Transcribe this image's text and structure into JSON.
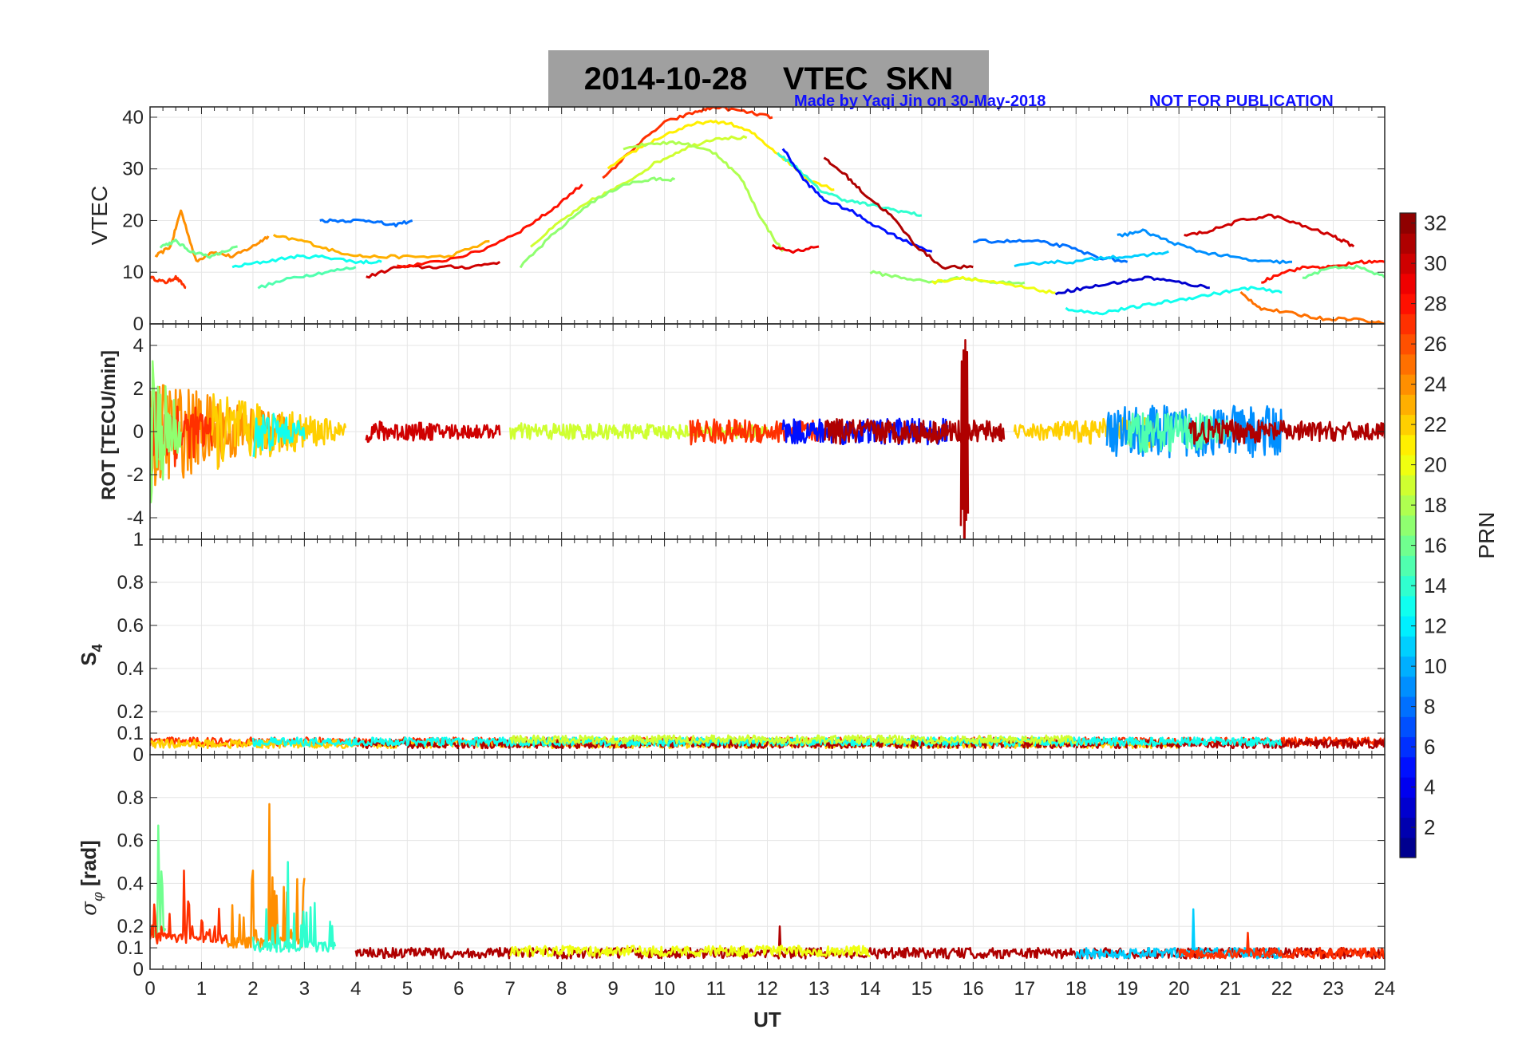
{
  "header": {
    "title": "2014-10-28    VTEC  SKN",
    "credit_left": "Made by Yaqi Jin on 30-May-2018",
    "credit_right": "NOT FOR PUBLICATION"
  },
  "colors": {
    "title_box": "#a0a0a0",
    "credit_text": "#1010ff",
    "grid": "#e6e6e6",
    "axis": "#262626"
  },
  "chart_data": [
    {
      "type": "line",
      "panel": "VTEC",
      "ylabel": "VTEC",
      "xlim": [
        0,
        24
      ],
      "ylim": [
        0,
        42
      ],
      "yticks": [
        0,
        10,
        20,
        30,
        40
      ],
      "ytick_labels": [
        "0",
        "10",
        "20",
        "30",
        "40"
      ],
      "grid": true,
      "series": [
        {
          "prn": 27,
          "x": [
            0,
            0.3,
            0.5,
            0.7
          ],
          "y": [
            9,
            8,
            9,
            7
          ]
        },
        {
          "prn": 24,
          "x": [
            0.1,
            0.4,
            0.6,
            0.9,
            1.2,
            1.6,
            2.0,
            2.3
          ],
          "y": [
            13,
            15,
            22,
            12,
            14,
            13,
            15,
            17
          ]
        },
        {
          "prn": 16,
          "x": [
            0.2,
            0.5,
            0.8,
            1.2,
            1.7
          ],
          "y": [
            15,
            16,
            14,
            13,
            15
          ]
        },
        {
          "prn": 23,
          "x": [
            2.4,
            3.0,
            3.6,
            4.2,
            5.0,
            5.8,
            6.6
          ],
          "y": [
            17,
            16,
            14,
            13,
            13,
            13,
            16
          ]
        },
        {
          "prn": 13,
          "x": [
            1.6,
            2.2,
            2.8,
            3.4,
            4.0,
            4.5
          ],
          "y": [
            11,
            12,
            13,
            13,
            12,
            12
          ]
        },
        {
          "prn": 15,
          "x": [
            2.1,
            2.8,
            3.4,
            4.0
          ],
          "y": [
            7,
            9,
            10,
            11
          ]
        },
        {
          "prn": 8,
          "x": [
            3.3,
            3.8,
            4.3,
            4.7,
            5.1
          ],
          "y": [
            20,
            20,
            20,
            19,
            20
          ]
        },
        {
          "prn": 30,
          "x": [
            4.2,
            4.8,
            5.5,
            6.2,
            6.8
          ],
          "y": [
            9,
            11,
            11,
            11,
            12
          ]
        },
        {
          "prn": 28,
          "x": [
            4.8,
            5.6,
            6.4,
            7.2,
            7.8,
            8.4
          ],
          "y": [
            11,
            12,
            14,
            18,
            22,
            27
          ]
        },
        {
          "prn": 19,
          "x": [
            7.4,
            8.0,
            8.6,
            9.2,
            9.8,
            10.4,
            11.0,
            11.6
          ],
          "y": [
            15,
            20,
            24,
            27,
            31,
            34,
            36,
            36
          ]
        },
        {
          "prn": 17,
          "x": [
            7.2,
            7.8,
            8.5,
            9.2,
            9.8,
            10.2
          ],
          "y": [
            11,
            17,
            23,
            27,
            28,
            28
          ]
        },
        {
          "prn": 27,
          "x": [
            8.8,
            9.4,
            10.0,
            10.6,
            11.0,
            11.6,
            12.1
          ],
          "y": [
            28,
            34,
            39,
            41,
            42,
            41,
            40
          ]
        },
        {
          "prn": 21,
          "x": [
            8.9,
            9.5,
            10.1,
            10.7,
            11.2,
            11.7,
            12.2,
            12.8,
            13.3
          ],
          "y": [
            30,
            34,
            37,
            39,
            39,
            37,
            33,
            28,
            26
          ]
        },
        {
          "prn": 18,
          "x": [
            9.2,
            9.8,
            10.4,
            11.0,
            11.5,
            11.9,
            12.3
          ],
          "y": [
            34,
            35,
            35,
            33,
            28,
            20,
            14
          ]
        },
        {
          "prn": 14,
          "x": [
            12.2,
            12.6,
            13.0,
            13.5,
            14.0,
            14.5,
            15.0
          ],
          "y": [
            33,
            30,
            26,
            24,
            23,
            22,
            21
          ]
        },
        {
          "prn": 5,
          "x": [
            12.3,
            12.7,
            13.1,
            13.6,
            14.1,
            14.7,
            15.2
          ],
          "y": [
            34,
            28,
            24,
            22,
            19,
            16,
            14
          ]
        },
        {
          "prn": 31,
          "x": [
            13.1,
            13.5,
            13.9,
            14.4,
            14.9,
            15.4,
            16.0
          ],
          "y": [
            32,
            29,
            25,
            21,
            15,
            11,
            11
          ]
        },
        {
          "prn": 29,
          "x": [
            12.1,
            12.5,
            13.0
          ],
          "y": [
            15,
            14,
            15
          ]
        },
        {
          "prn": 17,
          "x": [
            14.0,
            14.6,
            15.2,
            15.8,
            16.4,
            17.0
          ],
          "y": [
            10,
            9,
            8,
            9,
            8,
            8
          ]
        },
        {
          "prn": 20,
          "x": [
            15.2,
            15.8,
            16.4,
            17.0,
            17.6
          ],
          "y": [
            8,
            9,
            8,
            7,
            6
          ]
        },
        {
          "prn": 8,
          "x": [
            16.0,
            16.6,
            17.2,
            17.8,
            18.4,
            19.0
          ],
          "y": [
            16,
            16,
            16,
            15,
            13,
            12
          ]
        },
        {
          "prn": 11,
          "x": [
            16.8,
            17.4,
            18.0,
            18.6,
            19.2,
            19.8
          ],
          "y": [
            11,
            12,
            12,
            13,
            13,
            14
          ]
        },
        {
          "prn": 9,
          "x": [
            18.8,
            19.3,
            19.8,
            20.4,
            21.0,
            21.6,
            22.2
          ],
          "y": [
            17,
            18,
            16,
            14,
            13,
            12,
            12
          ]
        },
        {
          "prn": 30,
          "x": [
            20.1,
            20.6,
            21.2,
            21.8,
            22.4,
            23.0,
            23.4
          ],
          "y": [
            17,
            18,
            20,
            21,
            19,
            17,
            15
          ]
        },
        {
          "prn": 28,
          "x": [
            21.6,
            22.0,
            22.5,
            23.0,
            23.5,
            24.0
          ],
          "y": [
            8,
            10,
            11,
            11,
            12,
            12
          ]
        },
        {
          "prn": 25,
          "x": [
            21.2,
            21.6,
            22.2,
            22.8,
            23.4,
            24.0
          ],
          "y": [
            6,
            3,
            2,
            1,
            1,
            0
          ]
        },
        {
          "prn": 3,
          "x": [
            17.6,
            18.2,
            18.8,
            19.4,
            20.0,
            20.6
          ],
          "y": [
            6,
            7,
            8,
            9,
            8,
            7
          ]
        },
        {
          "prn": 13,
          "x": [
            17.8,
            18.4,
            19.0,
            19.6,
            20.2,
            20.8,
            21.4,
            22.0
          ],
          "y": [
            3,
            2,
            3,
            4,
            5,
            6,
            7,
            6
          ]
        },
        {
          "prn": 16,
          "x": [
            22.4,
            23.0,
            23.5,
            24.0
          ],
          "y": [
            9,
            11,
            11,
            9
          ]
        }
      ]
    },
    {
      "type": "line",
      "panel": "ROT",
      "ylabel": "ROT [TECU/min]",
      "xlim": [
        0,
        24
      ],
      "ylim": [
        -5,
        5
      ],
      "yticks": [
        -4,
        -2,
        0,
        2,
        4
      ],
      "ytick_labels": [
        "-4",
        "-2",
        "0",
        "2",
        "4"
      ],
      "grid": true,
      "series": [
        {
          "prn": 24,
          "x": [
            0,
            2.8
          ],
          "amplitude": [
            2.6,
            0.6
          ]
        },
        {
          "prn": 27,
          "x": [
            0,
            1.2
          ],
          "amplitude": [
            2.2,
            0.8
          ]
        },
        {
          "prn": 17,
          "x": [
            0,
            0.6
          ],
          "amplitude": [
            3.5,
            1.0
          ]
        },
        {
          "prn": 22,
          "x": [
            1.2,
            3.8
          ],
          "amplitude": [
            1.8,
            0.4
          ]
        },
        {
          "prn": 13,
          "x": [
            2.0,
            3.0
          ],
          "amplitude": [
            1.2,
            0.4
          ]
        },
        {
          "prn": 30,
          "x": [
            4.2,
            6.8
          ],
          "amplitude": [
            0.5,
            0.3
          ]
        },
        {
          "prn": 19,
          "x": [
            7.0,
            12.0
          ],
          "amplitude": [
            0.4,
            0.3
          ]
        },
        {
          "prn": 27,
          "x": [
            10.5,
            13.0
          ],
          "amplitude": [
            0.6,
            0.5
          ]
        },
        {
          "prn": 5,
          "x": [
            12.3,
            15.5
          ],
          "amplitude": [
            0.6,
            0.6
          ]
        },
        {
          "prn": 31,
          "x": [
            13.1,
            16.6
          ],
          "amplitude": [
            0.6,
            0.5
          ]
        },
        {
          "prn": 31,
          "x": [
            15.76,
            15.9
          ],
          "amplitude": [
            4.5,
            4.5
          ]
        },
        {
          "prn": 22,
          "x": [
            16.8,
            19.5
          ],
          "amplitude": [
            0.3,
            0.8
          ]
        },
        {
          "prn": 9,
          "x": [
            18.6,
            22.0
          ],
          "amplitude": [
            1.2,
            1.2
          ]
        },
        {
          "prn": 15,
          "x": [
            19.0,
            21.0
          ],
          "amplitude": [
            1.0,
            0.8
          ]
        },
        {
          "prn": 31,
          "x": [
            20.2,
            24.0
          ],
          "amplitude": [
            0.6,
            0.4
          ]
        }
      ]
    },
    {
      "type": "line",
      "panel": "S4",
      "ylabel": "S4",
      "xlim": [
        0,
        24
      ],
      "ylim": [
        0,
        1
      ],
      "yticks": [
        0,
        0.1,
        0.2,
        0.4,
        0.6,
        0.8,
        1
      ],
      "ytick_labels": [
        "0",
        "0.1",
        "0.2",
        "0.4",
        "0.6",
        "0.8",
        "1"
      ],
      "grid": true,
      "series": [
        {
          "prn": 27,
          "x": [
            0,
            24
          ],
          "level": 0.06
        },
        {
          "prn": 22,
          "x": [
            0,
            20
          ],
          "level": 0.05
        },
        {
          "prn": 31,
          "x": [
            4,
            24
          ],
          "level": 0.05
        },
        {
          "prn": 13,
          "x": [
            2,
            22
          ],
          "level": 0.06
        },
        {
          "prn": 19,
          "x": [
            7,
            18
          ],
          "level": 0.07
        }
      ]
    },
    {
      "type": "line",
      "panel": "sigma_phi",
      "ylabel": "σ_φ [rad]",
      "xlabel": "UT",
      "xlim": [
        0,
        24
      ],
      "ylim": [
        0,
        1
      ],
      "xticks": [
        0,
        1,
        2,
        3,
        4,
        5,
        6,
        7,
        8,
        9,
        10,
        11,
        12,
        13,
        14,
        15,
        16,
        17,
        18,
        19,
        20,
        21,
        22,
        23,
        24
      ],
      "xtick_labels": [
        "0",
        "1",
        "2",
        "3",
        "4",
        "5",
        "6",
        "7",
        "8",
        "9",
        "10",
        "11",
        "12",
        "13",
        "14",
        "15",
        "16",
        "17",
        "18",
        "19",
        "20",
        "21",
        "22",
        "23",
        "24"
      ],
      "yticks": [
        0,
        0.1,
        0.2,
        0.4,
        0.6,
        0.8
      ],
      "ytick_labels": [
        "0",
        "0.1",
        "0.2",
        "0.4",
        "0.6",
        "0.8"
      ],
      "grid": true,
      "series": [
        {
          "prn": 16,
          "x": [
            0,
            0.3
          ],
          "level": 0.15,
          "peak": 0.67
        },
        {
          "prn": 27,
          "x": [
            0,
            1.5
          ],
          "level": 0.12,
          "peak": 0.46
        },
        {
          "prn": 24,
          "x": [
            1.5,
            3.0
          ],
          "level": 0.1,
          "peak": 0.77
        },
        {
          "prn": 14,
          "x": [
            2.0,
            3.6
          ],
          "level": 0.08,
          "peak": 0.5
        },
        {
          "prn": 31,
          "x": [
            4.0,
            24.0
          ],
          "level": 0.05,
          "peak": 0.2
        },
        {
          "prn": 20,
          "x": [
            7.0,
            14.0
          ],
          "level": 0.06,
          "peak": 0.1
        },
        {
          "prn": 11,
          "x": [
            18.0,
            22.0
          ],
          "level": 0.05,
          "peak": 0.28
        },
        {
          "prn": 27,
          "x": [
            20.0,
            24.0
          ],
          "level": 0.05,
          "peak": 0.17
        }
      ]
    }
  ],
  "colorbar": {
    "label": "PRN",
    "min": 1,
    "max": 32,
    "ticks": [
      2,
      4,
      6,
      8,
      10,
      12,
      14,
      16,
      18,
      20,
      22,
      24,
      26,
      28,
      30,
      32
    ],
    "tick_labels": [
      "2",
      "4",
      "6",
      "8",
      "10",
      "12",
      "14",
      "16",
      "18",
      "20",
      "22",
      "24",
      "26",
      "28",
      "30",
      "32"
    ],
    "colormap": "jet"
  }
}
